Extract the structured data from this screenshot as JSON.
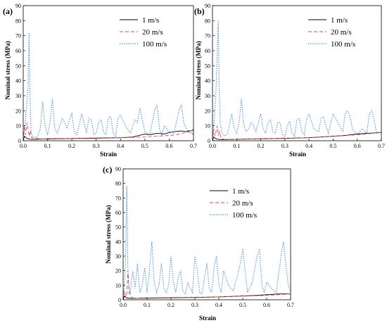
{
  "chart_data": [
    {
      "panel": "(a)",
      "type": "line",
      "xlabel": "Strain",
      "ylabel": "Nominal stress (MPa)",
      "xlim": [
        0,
        0.7
      ],
      "ylim": [
        0,
        90
      ],
      "xticks": [
        0.0,
        0.1,
        0.2,
        0.3,
        0.4,
        0.5,
        0.6,
        0.7
      ],
      "yticks": [
        0,
        10,
        20,
        30,
        40,
        50,
        60,
        70,
        80,
        90
      ],
      "legend_position": "top-right",
      "series": [
        {
          "name": "1 m/s",
          "color": "#000000",
          "style": "solid",
          "x": [
            0,
            0.005,
            0.015,
            0.03,
            0.05,
            0.1,
            0.2,
            0.3,
            0.4,
            0.45,
            0.5,
            0.52,
            0.55,
            0.58,
            0.6,
            0.62,
            0.65,
            0.67,
            0.7
          ],
          "y": [
            0,
            3,
            1.5,
            1,
            1,
            1.3,
            1.5,
            1.8,
            2,
            2.5,
            4.5,
            4,
            5,
            4.5,
            5.5,
            6,
            6.5,
            6,
            7
          ]
        },
        {
          "name": "20 m/s",
          "color": "#e8413a",
          "style": "dashed",
          "x": [
            0,
            0.005,
            0.01,
            0.015,
            0.02,
            0.025,
            0.03,
            0.035,
            0.05,
            0.1,
            0.2,
            0.3,
            0.4,
            0.5,
            0.6,
            0.65,
            0.68,
            0.7
          ],
          "y": [
            0,
            10,
            4,
            12,
            8,
            3,
            7,
            2,
            1.5,
            1,
            1.5,
            1.5,
            2,
            2.5,
            3.5,
            4.5,
            7,
            4
          ]
        },
        {
          "name": "100 m/s",
          "color": "#3a86d8",
          "style": "dotted",
          "x": [
            0,
            0.01,
            0.02,
            0.024,
            0.028,
            0.032,
            0.04,
            0.05,
            0.06,
            0.07,
            0.08,
            0.09,
            0.1,
            0.11,
            0.12,
            0.13,
            0.14,
            0.15,
            0.16,
            0.17,
            0.18,
            0.19,
            0.2,
            0.21,
            0.22,
            0.23,
            0.24,
            0.25,
            0.26,
            0.27,
            0.28,
            0.29,
            0.3,
            0.31,
            0.32,
            0.33,
            0.34,
            0.35,
            0.36,
            0.37,
            0.38,
            0.39,
            0.4,
            0.42,
            0.44,
            0.46,
            0.47,
            0.48,
            0.5,
            0.52,
            0.54,
            0.55,
            0.56,
            0.57,
            0.58,
            0.6,
            0.62,
            0.64,
            0.65,
            0.66,
            0.68,
            0.7
          ],
          "y": [
            0,
            15,
            35,
            72,
            30,
            5,
            3,
            2,
            3,
            8,
            26,
            10,
            4,
            12,
            28,
            8,
            5,
            10,
            15,
            12,
            8,
            14,
            18,
            6,
            4,
            10,
            18,
            12,
            5,
            15,
            14,
            4,
            5,
            12,
            14,
            6,
            4,
            15,
            16,
            5,
            3,
            15,
            17,
            10,
            5,
            14,
            12,
            22,
            6,
            4,
            20,
            24,
            8,
            4,
            10,
            6,
            5,
            20,
            24,
            12,
            5,
            8
          ]
        }
      ]
    },
    {
      "panel": "(b)",
      "type": "line",
      "xlabel": "Strain",
      "ylabel": "Nominal stress (MPa)",
      "xlim": [
        0,
        0.7
      ],
      "ylim": [
        0,
        90
      ],
      "xticks": [
        0.0,
        0.1,
        0.2,
        0.3,
        0.4,
        0.5,
        0.6,
        0.7
      ],
      "yticks": [
        0,
        10,
        20,
        30,
        40,
        50,
        60,
        70,
        80,
        90
      ],
      "legend_position": "top-right",
      "series": [
        {
          "name": "1 m/s",
          "color": "#000000",
          "style": "solid",
          "x": [
            0,
            0.005,
            0.015,
            0.03,
            0.05,
            0.1,
            0.2,
            0.3,
            0.4,
            0.5,
            0.55,
            0.6,
            0.65,
            0.7
          ],
          "y": [
            0,
            2.5,
            1.2,
            0.8,
            0.8,
            1,
            1.3,
            1.6,
            2,
            3,
            3.5,
            4.5,
            5,
            5.5
          ]
        },
        {
          "name": "20 m/s",
          "color": "#e8413a",
          "style": "dashed",
          "x": [
            0,
            0.005,
            0.01,
            0.015,
            0.02,
            0.025,
            0.03,
            0.035,
            0.05,
            0.1,
            0.2,
            0.3,
            0.4,
            0.5,
            0.6,
            0.65,
            0.7
          ],
          "y": [
            0,
            8,
            3,
            6,
            10,
            4,
            6,
            1.5,
            1,
            1,
            1.2,
            1.5,
            2,
            3,
            4,
            4.8,
            5.5
          ]
        },
        {
          "name": "100 m/s",
          "color": "#3a86d8",
          "style": "dotted",
          "x": [
            0,
            0.01,
            0.015,
            0.02,
            0.024,
            0.028,
            0.032,
            0.04,
            0.05,
            0.06,
            0.07,
            0.08,
            0.09,
            0.1,
            0.11,
            0.12,
            0.13,
            0.14,
            0.15,
            0.16,
            0.17,
            0.18,
            0.19,
            0.2,
            0.21,
            0.22,
            0.23,
            0.24,
            0.25,
            0.26,
            0.27,
            0.28,
            0.29,
            0.3,
            0.31,
            0.32,
            0.33,
            0.34,
            0.35,
            0.36,
            0.37,
            0.38,
            0.39,
            0.4,
            0.42,
            0.44,
            0.45,
            0.46,
            0.47,
            0.48,
            0.5,
            0.52,
            0.54,
            0.55,
            0.56,
            0.57,
            0.58,
            0.6,
            0.62,
            0.64,
            0.65,
            0.66,
            0.67,
            0.68,
            0.7
          ],
          "y": [
            0,
            20,
            35,
            60,
            80,
            35,
            12,
            5,
            3,
            4,
            10,
            18,
            8,
            5,
            12,
            28,
            10,
            6,
            8,
            12,
            10,
            6,
            12,
            18,
            8,
            5,
            12,
            14,
            6,
            5,
            12,
            12,
            4,
            3,
            10,
            13,
            5,
            3,
            14,
            15,
            6,
            4,
            14,
            18,
            8,
            6,
            15,
            16,
            10,
            5,
            18,
            12,
            6,
            18,
            20,
            16,
            8,
            4,
            8,
            5,
            18,
            20,
            14,
            5,
            6
          ]
        }
      ]
    },
    {
      "panel": "(c)",
      "type": "line",
      "xlabel": "Strain",
      "ylabel": "Nominal stress (MPa)",
      "xlim": [
        0,
        0.7
      ],
      "ylim": [
        0,
        90
      ],
      "xticks": [
        0.0,
        0.1,
        0.2,
        0.3,
        0.4,
        0.5,
        0.6,
        0.7
      ],
      "yticks": [
        0,
        10,
        20,
        30,
        40,
        50,
        60,
        70,
        80,
        90
      ],
      "legend_position": "top-right",
      "series": [
        {
          "name": "1 m/s",
          "color": "#000000",
          "style": "solid",
          "x": [
            0,
            0.005,
            0.015,
            0.03,
            0.05,
            0.1,
            0.2,
            0.3,
            0.4,
            0.5,
            0.55,
            0.6,
            0.65,
            0.7
          ],
          "y": [
            0,
            2.5,
            1.2,
            1,
            1,
            1.2,
            1.4,
            1.6,
            2,
            2.6,
            3,
            3.5,
            4,
            4
          ]
        },
        {
          "name": "20 m/s",
          "color": "#e8413a",
          "style": "dashed",
          "x": [
            0,
            0.005,
            0.01,
            0.015,
            0.02,
            0.025,
            0.03,
            0.035,
            0.05,
            0.1,
            0.2,
            0.3,
            0.4,
            0.5,
            0.6,
            0.7
          ],
          "y": [
            0,
            6,
            2,
            4,
            20,
            5,
            3,
            1.5,
            1,
            1,
            1.2,
            1.5,
            2,
            2.5,
            3,
            4
          ]
        },
        {
          "name": "100 m/s",
          "color": "#3a86d8",
          "style": "dotted",
          "x": [
            0,
            0.005,
            0.01,
            0.015,
            0.02,
            0.025,
            0.03,
            0.04,
            0.05,
            0.06,
            0.07,
            0.08,
            0.09,
            0.1,
            0.11,
            0.12,
            0.13,
            0.14,
            0.15,
            0.16,
            0.17,
            0.18,
            0.19,
            0.2,
            0.21,
            0.22,
            0.23,
            0.24,
            0.25,
            0.26,
            0.27,
            0.28,
            0.29,
            0.3,
            0.31,
            0.32,
            0.33,
            0.34,
            0.35,
            0.36,
            0.37,
            0.38,
            0.39,
            0.4,
            0.41,
            0.42,
            0.44,
            0.46,
            0.48,
            0.49,
            0.5,
            0.51,
            0.52,
            0.54,
            0.56,
            0.57,
            0.58,
            0.59,
            0.6,
            0.62,
            0.64,
            0.66,
            0.67,
            0.68,
            0.69,
            0.7
          ],
          "y": [
            0,
            10,
            25,
            78,
            20,
            8,
            4,
            20,
            8,
            25,
            5,
            10,
            22,
            5,
            20,
            40,
            12,
            5,
            10,
            25,
            8,
            5,
            10,
            30,
            12,
            5,
            15,
            20,
            6,
            4,
            12,
            8,
            5,
            30,
            20,
            5,
            4,
            15,
            25,
            8,
            5,
            22,
            30,
            10,
            5,
            20,
            10,
            6,
            18,
            25,
            35,
            20,
            5,
            12,
            30,
            35,
            10,
            5,
            12,
            8,
            5,
            30,
            40,
            25,
            10,
            6
          ]
        }
      ]
    }
  ]
}
